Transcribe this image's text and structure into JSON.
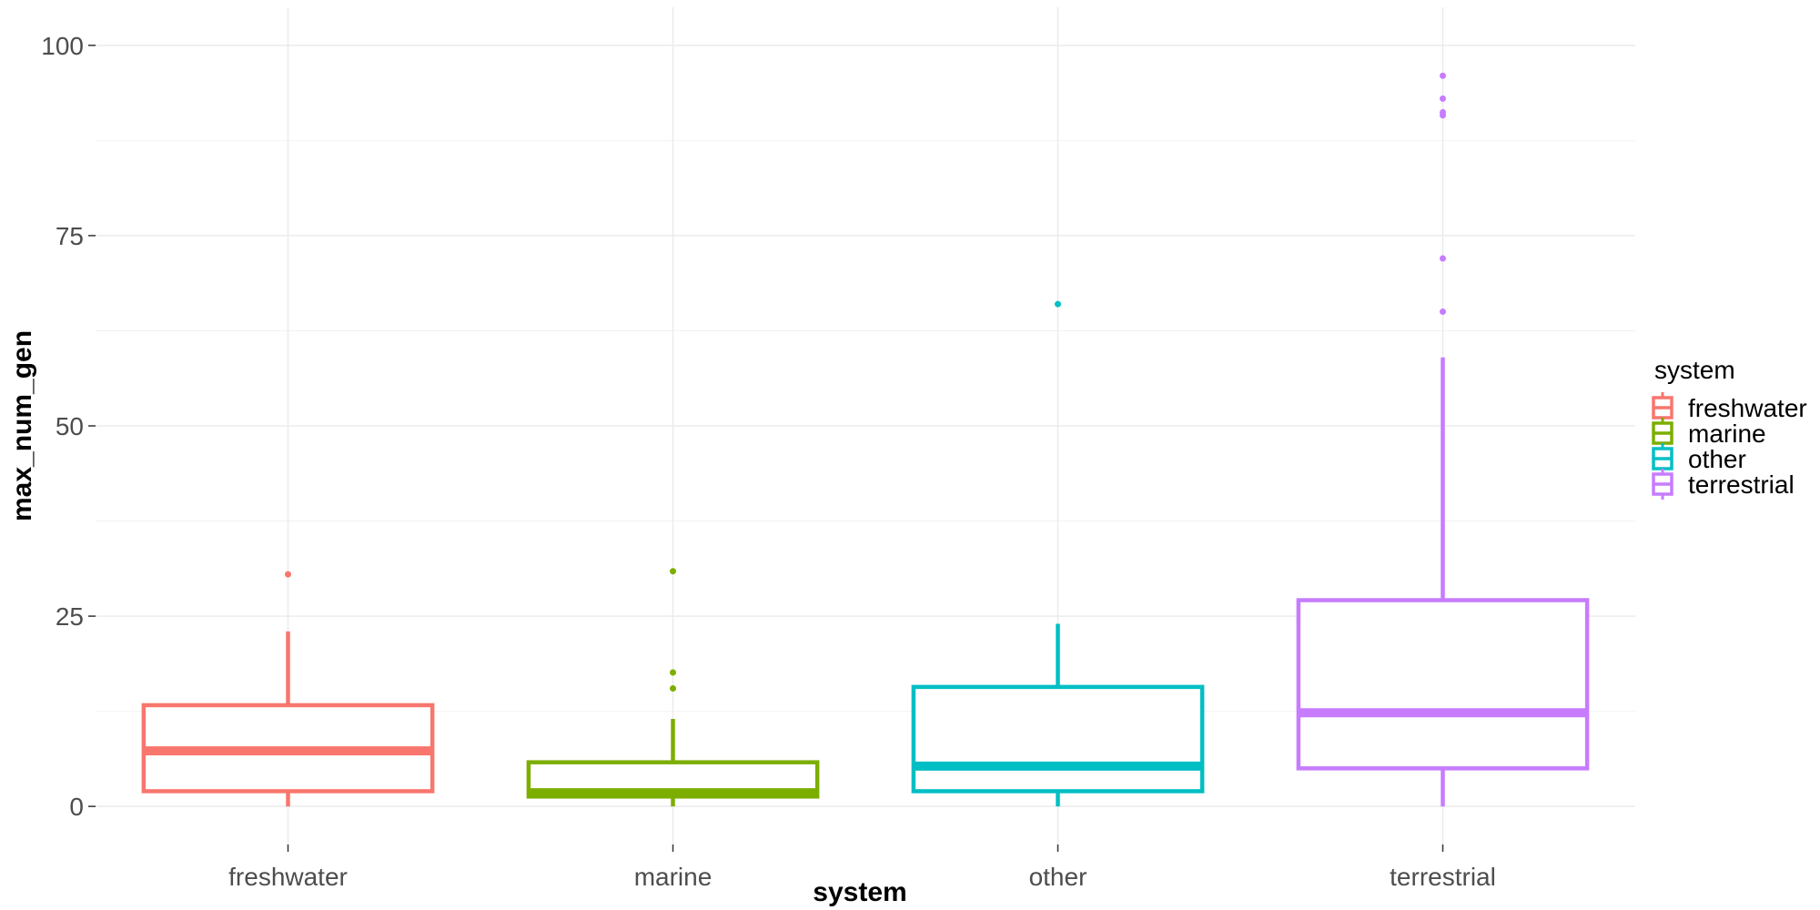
{
  "chart_data": {
    "type": "boxplot",
    "xlabel": "system",
    "ylabel": "max_num_gen",
    "ylim": [
      -5,
      105
    ],
    "y_ticks": [
      0,
      25,
      50,
      75,
      100
    ],
    "y_tick_labels": [
      "0",
      "25",
      "50",
      "75",
      "100"
    ],
    "grid": true,
    "legend": {
      "title": "system",
      "position": "right",
      "entries": [
        "freshwater",
        "marine",
        "other",
        "terrestrial"
      ]
    },
    "series": [
      {
        "name": "freshwater",
        "color": "#F8766D",
        "min": 0,
        "q1": 2,
        "median": 7.3,
        "q3": 13.3,
        "whisker_high": 23,
        "outliers": [
          30.5
        ]
      },
      {
        "name": "marine",
        "color": "#7CAE00",
        "min": 0,
        "q1": 1.3,
        "median": 1.8,
        "q3": 5.8,
        "whisker_high": 11.5,
        "outliers": [
          15.5,
          17.6,
          30.9
        ]
      },
      {
        "name": "other",
        "color": "#00BFC4",
        "min": 0,
        "q1": 2,
        "median": 5.3,
        "q3": 15.7,
        "whisker_high": 24,
        "outliers": [
          66
        ]
      },
      {
        "name": "terrestrial",
        "color": "#C77CFF",
        "min": 0,
        "q1": 5,
        "median": 12.3,
        "q3": 27.1,
        "whisker_high": 59,
        "outliers": [
          65,
          72,
          90.8,
          91.2,
          93,
          96
        ]
      }
    ]
  }
}
